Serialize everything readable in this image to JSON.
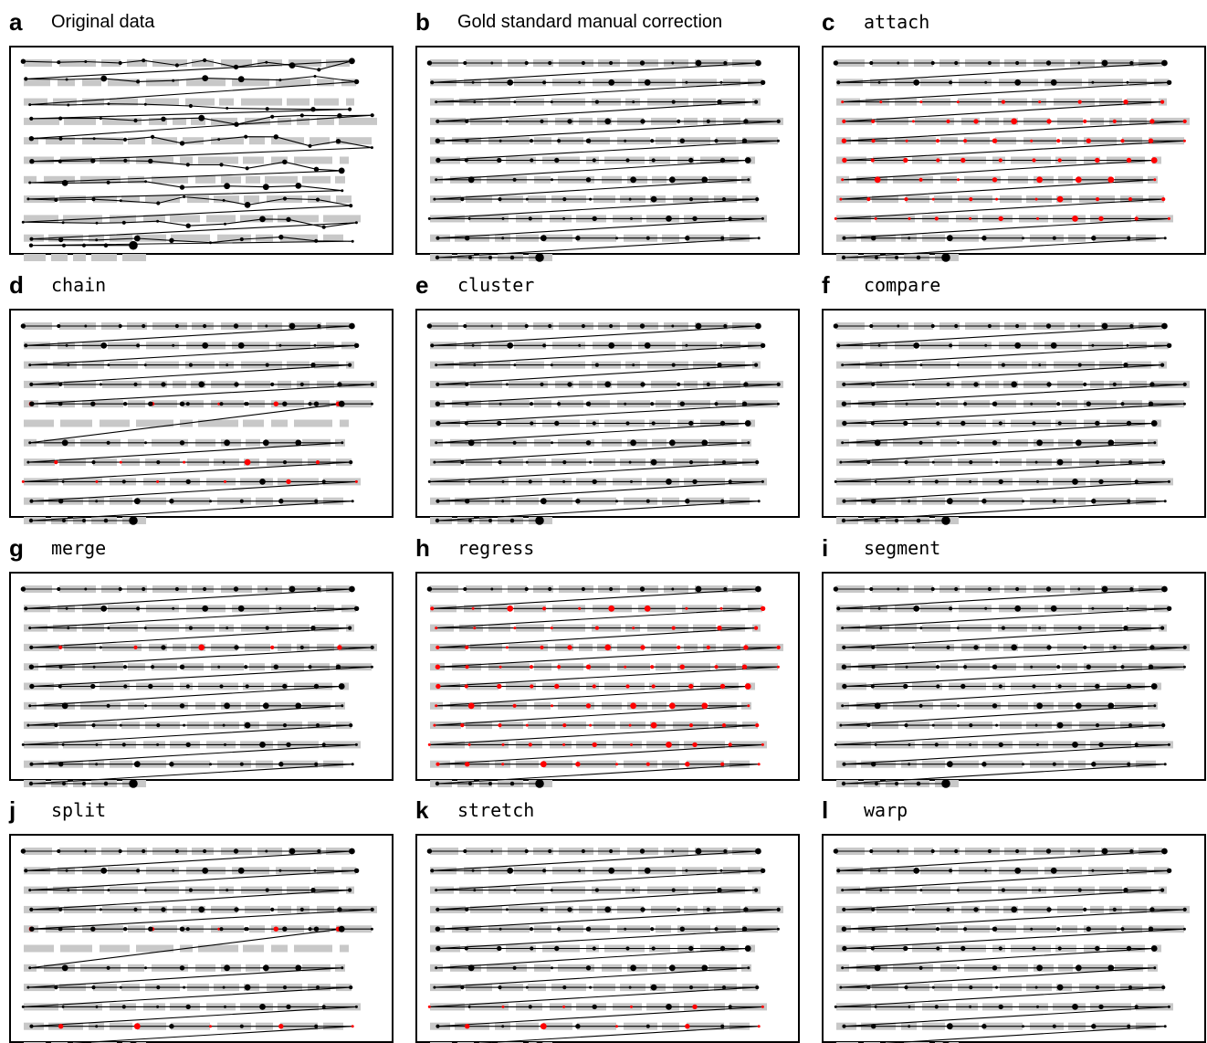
{
  "panels": [
    {
      "letter": "a",
      "title": "Original data",
      "font": "sans",
      "variant": "original"
    },
    {
      "letter": "b",
      "title": "Gold standard manual correction",
      "font": "sans",
      "variant": "gold"
    },
    {
      "letter": "c",
      "title": "attach",
      "font": "mono",
      "variant": "attach"
    },
    {
      "letter": "d",
      "title": "chain",
      "font": "mono",
      "variant": "chain"
    },
    {
      "letter": "e",
      "title": "cluster",
      "font": "mono",
      "variant": "cluster"
    },
    {
      "letter": "f",
      "title": "compare",
      "font": "mono",
      "variant": "compare"
    },
    {
      "letter": "g",
      "title": "merge",
      "font": "mono",
      "variant": "merge"
    },
    {
      "letter": "h",
      "title": "regress",
      "font": "mono",
      "variant": "regress"
    },
    {
      "letter": "i",
      "title": "segment",
      "font": "mono",
      "variant": "segment"
    },
    {
      "letter": "j",
      "title": "split",
      "font": "mono",
      "variant": "split"
    },
    {
      "letter": "k",
      "title": "stretch",
      "font": "mono",
      "variant": "stretch"
    },
    {
      "letter": "l",
      "title": "warp",
      "font": "mono",
      "variant": "warp"
    }
  ],
  "colors": {
    "text_block": "#c8c8c8",
    "fixation": "#000000",
    "highlight": "#ff0000",
    "frame": "#000000",
    "background": "#ffffff"
  }
}
